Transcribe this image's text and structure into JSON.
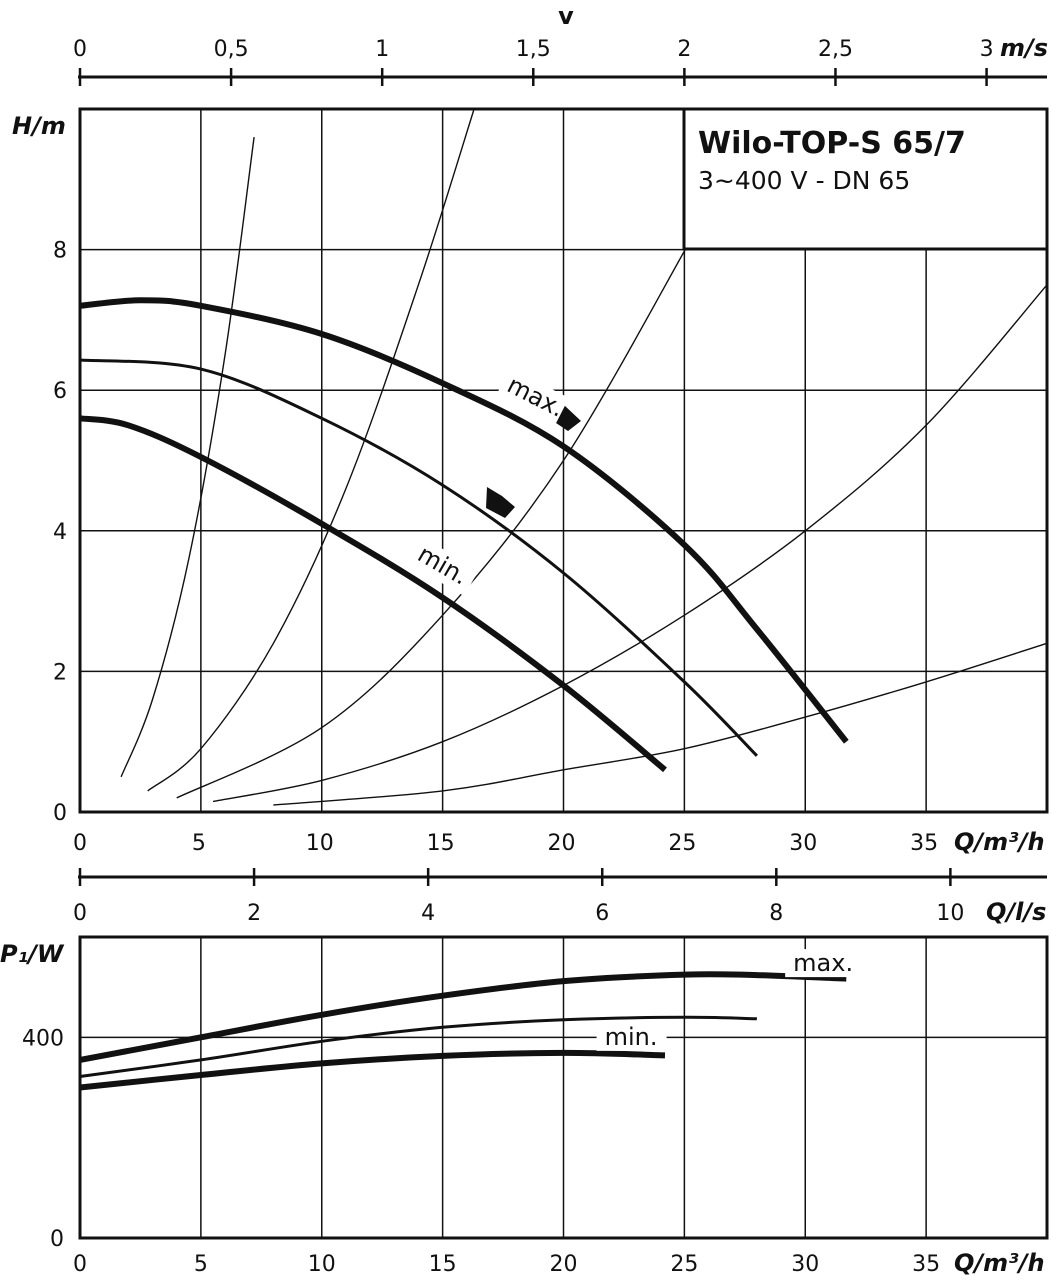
{
  "chart_data": [
    {
      "type": "line",
      "title": "Wilo-TOP-S 65/7",
      "subtitle": "3~400 V - DN 65",
      "xlabel": "Q/m³/h",
      "ylabel": "H/m",
      "xlim": [
        0,
        40
      ],
      "ylim": [
        0,
        10
      ],
      "x_ticks": [
        "0",
        "5",
        "10",
        "15",
        "20",
        "25",
        "30",
        "35"
      ],
      "y_ticks": [
        "0",
        "2",
        "4",
        "6",
        "8"
      ],
      "grid": true,
      "top_axis": {
        "label": "v",
        "unit": "m/s",
        "ticks": [
          "0",
          "0,5",
          "1",
          "1,5",
          "2",
          "2,5",
          "3"
        ],
        "max": 3.2
      },
      "second_axis": {
        "unit": "Q/l/s",
        "ticks": [
          "0",
          "2",
          "4",
          "6",
          "8",
          "10"
        ],
        "max": 11.11
      },
      "series": [
        {
          "name": "max.",
          "x": [
            0,
            2.5,
            5,
            10,
            15,
            20,
            25,
            28,
            31.7
          ],
          "y": [
            7.2,
            7.28,
            7.2,
            6.8,
            6.1,
            5.2,
            3.8,
            2.6,
            1.0
          ]
        },
        {
          "x": [
            0,
            5,
            10,
            15,
            20,
            25,
            28
          ],
          "y": [
            6.43,
            6.3,
            5.6,
            4.65,
            3.4,
            1.85,
            0.8
          ]
        },
        {
          "name": "min.",
          "x": [
            0,
            2,
            5,
            10,
            15,
            20,
            24.2
          ],
          "y": [
            5.6,
            5.5,
            5.05,
            4.1,
            3.05,
            1.8,
            0.6
          ]
        }
      ],
      "system_curves": [
        {
          "x": [
            1.7,
            3,
            4.5,
            6,
            7.2
          ],
          "y": [
            0.5,
            1.6,
            3.6,
            6.5,
            9.6
          ]
        },
        {
          "x": [
            2.8,
            5,
            8,
            11,
            14,
            16.3
          ],
          "y": [
            0.3,
            0.9,
            2.4,
            4.6,
            7.5,
            10
          ]
        },
        {
          "x": [
            4,
            10,
            15,
            20,
            25.2
          ],
          "y": [
            0.2,
            1.2,
            2.8,
            5.0,
            8.1
          ]
        },
        {
          "x": [
            5.5,
            10,
            15,
            20,
            25,
            30,
            35,
            40
          ],
          "y": [
            0.15,
            0.45,
            1.0,
            1.8,
            2.8,
            4.0,
            5.5,
            7.5
          ]
        },
        {
          "x": [
            8,
            15,
            20,
            25,
            30,
            35,
            40
          ],
          "y": [
            0.1,
            0.3,
            0.6,
            0.9,
            1.35,
            1.85,
            2.4
          ]
        }
      ],
      "annotations": [
        {
          "text": "max.",
          "x": 17.6,
          "y": 6.0
        },
        {
          "text": "min.",
          "x": 13.9,
          "y": 3.6
        }
      ]
    },
    {
      "type": "line",
      "xlabel": "Q/m³/h",
      "ylabel": "P₁/W",
      "xlim": [
        0,
        40
      ],
      "ylim": [
        0,
        600
      ],
      "x_ticks": [
        "0",
        "5",
        "10",
        "15",
        "20",
        "25",
        "30",
        "35"
      ],
      "y_ticks": [
        "0",
        "400"
      ],
      "grid": true,
      "series": [
        {
          "name": "max.",
          "x": [
            0,
            5,
            10,
            15,
            20,
            25,
            28,
            31.7
          ],
          "y": [
            355,
            400,
            445,
            483,
            512,
            525,
            524,
            517
          ]
        },
        {
          "x": [
            0,
            5,
            10,
            15,
            20,
            25,
            28
          ],
          "y": [
            322,
            355,
            392,
            420,
            435,
            440,
            437
          ]
        },
        {
          "name": "min.",
          "x": [
            0,
            5,
            10,
            15,
            20,
            24.2
          ],
          "y": [
            300,
            325,
            348,
            363,
            369,
            364
          ]
        }
      ],
      "annotations": [
        {
          "text": "max.",
          "x": 29.5,
          "y": 532
        },
        {
          "text": "min.",
          "x": 21.7,
          "y": 385
        }
      ]
    }
  ]
}
